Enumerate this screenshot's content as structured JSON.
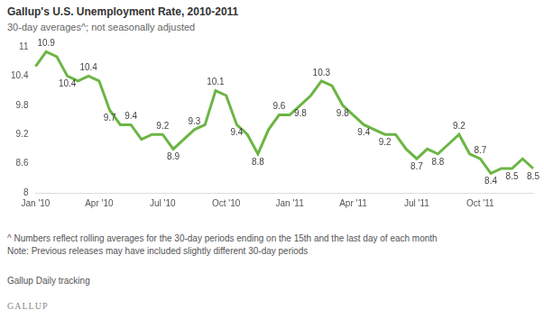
{
  "chart_data": {
    "type": "line",
    "title": "Gallup's U.S. Unemployment Rate, 2010-2011",
    "subtitle": "30-day averages^; not seasonally adjusted",
    "notes": [
      "^ Numbers reflect rolling averages for the 30-day periods ending on the 15th and the last day of each month",
      "Note: Previous releases may have included slightly different 30-day periods"
    ],
    "source": "Gallup Daily tracking",
    "brand": "GALLUP",
    "categories": [
      "Jan '10",
      null,
      null,
      null,
      null,
      null,
      "Apr '10",
      null,
      null,
      null,
      null,
      null,
      "Jul '10",
      null,
      null,
      null,
      null,
      null,
      "Oct '10",
      null,
      null,
      null,
      null,
      null,
      "Jan '11",
      null,
      null,
      null,
      null,
      null,
      "Apr '11",
      null,
      null,
      null,
      null,
      null,
      "Jul '11",
      null,
      null,
      null,
      null,
      null,
      "Oct '11",
      null,
      null,
      null,
      null,
      null
    ],
    "values": [
      10.6,
      10.9,
      10.8,
      10.4,
      10.3,
      10.4,
      10.3,
      9.7,
      9.4,
      9.4,
      9.1,
      9.2,
      9.2,
      8.9,
      9.1,
      9.3,
      9.4,
      10.1,
      10.0,
      9.4,
      9.2,
      8.8,
      9.3,
      9.6,
      9.6,
      9.8,
      10.0,
      10.3,
      10.2,
      9.8,
      9.6,
      9.4,
      9.3,
      9.2,
      9.2,
      8.9,
      8.7,
      8.9,
      8.8,
      9.0,
      9.2,
      8.8,
      8.7,
      8.4,
      8.5,
      8.5,
      8.7,
      8.5
    ],
    "value_labels": [
      null,
      "10.9",
      null,
      "10.4",
      null,
      "10.4",
      null,
      "9.7",
      null,
      "9.4",
      null,
      null,
      "9.2",
      "8.9",
      null,
      "9.3",
      null,
      "10.1",
      null,
      "9.4",
      null,
      "8.8",
      null,
      "9.6",
      null,
      "9.8",
      null,
      "10.3",
      null,
      "9.8",
      null,
      "9.4",
      null,
      "9.2",
      null,
      null,
      "8.7",
      null,
      "8.8",
      null,
      "9.2",
      null,
      "8.7",
      "8.4",
      null,
      "8.5",
      null,
      "8.5"
    ],
    "data_labels": true,
    "color": "#6cb544",
    "ylim": [
      8,
      11
    ],
    "yticks": [
      8,
      8.6,
      9.2,
      9.8,
      10.4,
      11
    ],
    "grid": false
  }
}
